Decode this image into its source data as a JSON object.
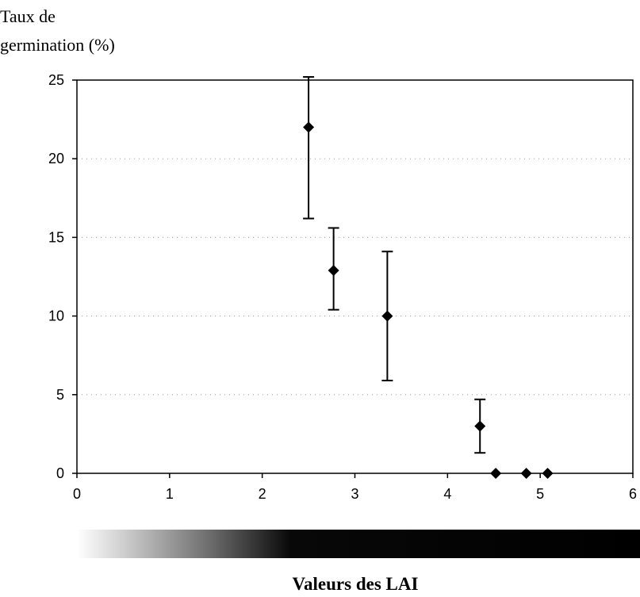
{
  "chart_data": {
    "type": "scatter",
    "ylabel_lines": [
      "Taux de",
      "germination (%)"
    ],
    "xlabel": "Valeurs des LAI",
    "xlim": [
      0,
      6
    ],
    "ylim": [
      0,
      25
    ],
    "xticks": [
      "0",
      "1",
      "2",
      "3",
      "4",
      "5",
      "6"
    ],
    "yticks": [
      "0",
      "5",
      "10",
      "15",
      "20",
      "25"
    ],
    "grid": "horizontal dotted",
    "marker": "diamond",
    "series": [
      {
        "points": [
          {
            "x": 2.5,
            "y": 22,
            "err_low": 16.2,
            "err_high": 25.2
          },
          {
            "x": 2.77,
            "y": 12.9,
            "err_low": 10.4,
            "err_high": 15.6
          },
          {
            "x": 3.35,
            "y": 10,
            "err_low": 5.9,
            "err_high": 14.1
          },
          {
            "x": 4.35,
            "y": 3,
            "err_low": 1.3,
            "err_high": 4.7
          },
          {
            "x": 4.52,
            "y": 0
          },
          {
            "x": 4.85,
            "y": 0
          },
          {
            "x": 5.08,
            "y": 0
          }
        ]
      }
    ],
    "gradient_bar": {
      "from_color": "#ffffff",
      "to_color": "#000000"
    }
  }
}
